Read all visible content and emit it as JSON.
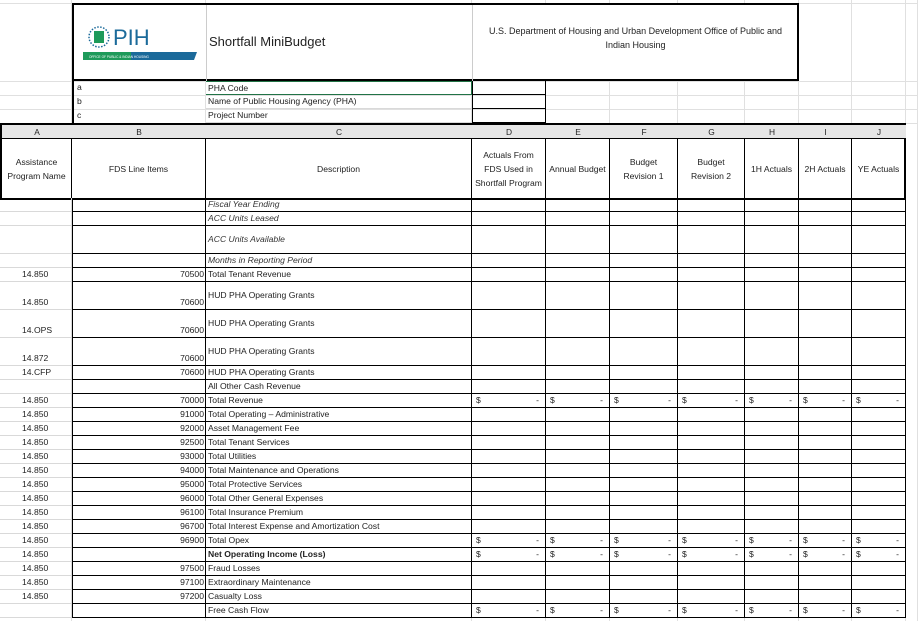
{
  "banner": {
    "logo_text": "PIH",
    "logo_subtext": "OFFICE OF PUBLIC & INDIAN HOUSING",
    "title": "Shortfall MiniBudget",
    "department": "U.S. Department of Housing and Urban Development Office of Public and Indian Housing"
  },
  "info_rows": [
    {
      "letter": "a",
      "label": "PHA Code"
    },
    {
      "letter": "b",
      "label": "Name of Public Housing Agency (PHA)"
    },
    {
      "letter": "c",
      "label": "Project Number"
    }
  ],
  "column_letters": [
    "A",
    "B",
    "C",
    "D",
    "E",
    "F",
    "G",
    "H",
    "I",
    "J"
  ],
  "column_headers": [
    "Assistance Program Name",
    "FDS Line Items",
    "Description",
    "Actuals From FDS Used in Shortfall Program",
    "Annual Budget",
    "Budget Revision 1",
    "Budget Revision 2",
    "1H Actuals",
    "2H Actuals",
    "YE Actuals"
  ],
  "currency_symbol": "$",
  "empty_value": "-",
  "rows": [
    {
      "program": "",
      "fds": "",
      "desc": "Fiscal Year Ending",
      "style": "italic",
      "money": false
    },
    {
      "program": "",
      "fds": "",
      "desc": "ACC Units Leased",
      "style": "italic",
      "money": false
    },
    {
      "program": "",
      "fds": "",
      "desc": "ACC Units Available",
      "style": "italic",
      "money": false
    },
    {
      "program": "",
      "fds": "",
      "desc": "Months in Reporting Period",
      "style": "italic",
      "money": false
    },
    {
      "program": "14.850",
      "fds": "70500",
      "desc": "Total Tenant Revenue",
      "style": "",
      "money": false
    },
    {
      "program": "14.850",
      "fds": "70600",
      "desc": "HUD PHA Operating Grants",
      "style": "",
      "money": false
    },
    {
      "program": "14.OPS",
      "fds": "70600",
      "desc": "HUD PHA Operating Grants",
      "style": "",
      "money": false
    },
    {
      "program": "14.872",
      "fds": "70600",
      "desc": "HUD PHA Operating Grants",
      "style": "",
      "money": false
    },
    {
      "program": "14.CFP",
      "fds": "70600",
      "desc": "HUD PHA Operating Grants",
      "style": "",
      "money": false
    },
    {
      "program": "",
      "fds": "",
      "desc": "All Other Cash Revenue",
      "style": "",
      "money": false
    },
    {
      "program": "14.850",
      "fds": "70000",
      "desc": "Total Revenue",
      "style": "",
      "money": true
    },
    {
      "program": "14.850",
      "fds": "91000",
      "desc": "Total Operating – Administrative",
      "style": "",
      "money": false
    },
    {
      "program": "14.850",
      "fds": "92000",
      "desc": "Asset Management Fee",
      "style": "",
      "money": false
    },
    {
      "program": "14.850",
      "fds": "92500",
      "desc": "Total Tenant Services",
      "style": "",
      "money": false
    },
    {
      "program": "14.850",
      "fds": "93000",
      "desc": "Total Utilities",
      "style": "",
      "money": false
    },
    {
      "program": "14.850",
      "fds": "94000",
      "desc": "Total Maintenance and Operations",
      "style": "",
      "money": false
    },
    {
      "program": "14.850",
      "fds": "95000",
      "desc": "Total Protective Services",
      "style": "",
      "money": false
    },
    {
      "program": "14.850",
      "fds": "96000",
      "desc": "Total Other General Expenses",
      "style": "",
      "money": false
    },
    {
      "program": "14.850",
      "fds": "96100",
      "desc": "Total Insurance Premium",
      "style": "",
      "money": false
    },
    {
      "program": "14.850",
      "fds": "96700",
      "desc": "Total Interest Expense and Amortization Cost",
      "style": "",
      "money": false
    },
    {
      "program": "14.850",
      "fds": "96900",
      "desc": "Total Opex",
      "style": "",
      "money": true
    },
    {
      "program": "14.850",
      "fds": "",
      "desc": "Net Operating Income (Loss)",
      "style": "bold",
      "money": true
    },
    {
      "program": "14.850",
      "fds": "97500",
      "desc": "Fraud Losses",
      "style": "",
      "money": false
    },
    {
      "program": "14.850",
      "fds": "97100",
      "desc": "Extraordinary Maintenance",
      "style": "",
      "money": false
    },
    {
      "program": "14.850",
      "fds": "97200",
      "desc": "Casualty Loss",
      "style": "",
      "money": false
    },
    {
      "program": "",
      "fds": "",
      "desc": "Free Cash Flow",
      "style": "",
      "money": true
    }
  ],
  "colors": {
    "logo_blue": "#1b6a9a",
    "logo_green": "#1e9a5a",
    "selected_border": "#217346",
    "header_fill": "#e6e6e6"
  }
}
